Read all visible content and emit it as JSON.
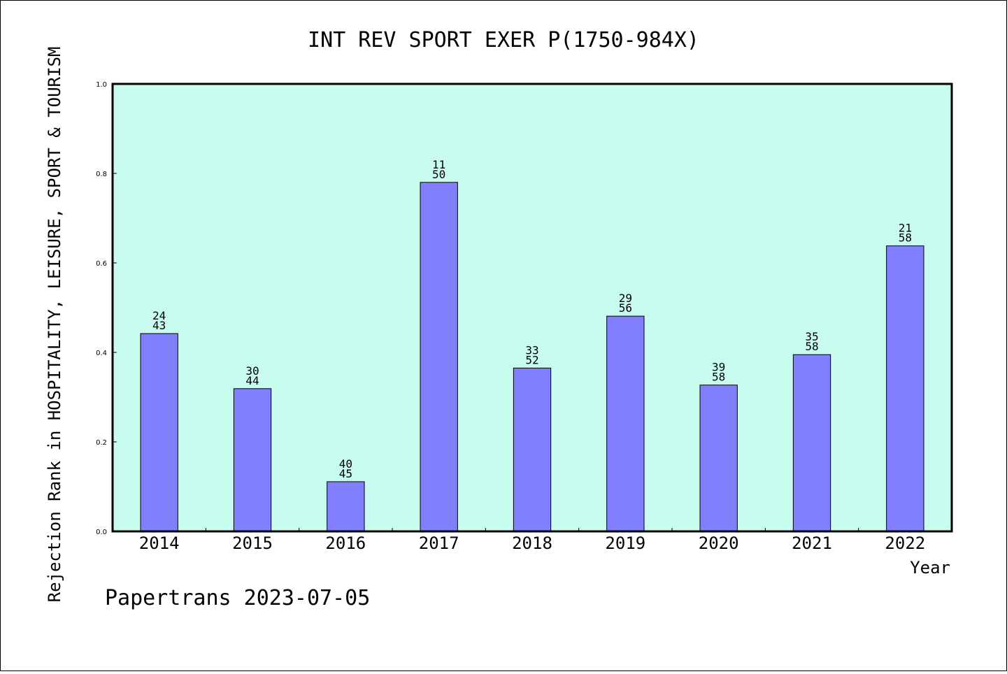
{
  "chart_data": {
    "type": "bar",
    "title": "INT REV SPORT EXER P(1750-984X)",
    "xlabel": "Year",
    "ylabel": "Rejection Rank in HOSPITALITY, LEISURE, SPORT & TOURISM",
    "ylim": [
      0,
      1.0
    ],
    "yticks": [
      "0.0",
      "0.2",
      "0.4",
      "0.6",
      "0.8",
      "1.0"
    ],
    "categories": [
      "2014",
      "2015",
      "2016",
      "2017",
      "2018",
      "2019",
      "2020",
      "2021",
      "2022"
    ],
    "values": [
      0.442,
      0.319,
      0.111,
      0.78,
      0.365,
      0.481,
      0.327,
      0.395,
      0.638
    ],
    "labels_top": [
      "24",
      "30",
      "40",
      "11",
      "33",
      "29",
      "39",
      "35",
      "21"
    ],
    "labels_bottom": [
      "43",
      "44",
      "45",
      "50",
      "52",
      "56",
      "58",
      "58",
      "58"
    ],
    "colors": {
      "bar": "#8080ff",
      "plot_background": "#c8fcee",
      "axes": "#000000"
    },
    "grid": false,
    "legend": "none"
  },
  "footer": {
    "text": "Papertrans 2023-07-05"
  }
}
